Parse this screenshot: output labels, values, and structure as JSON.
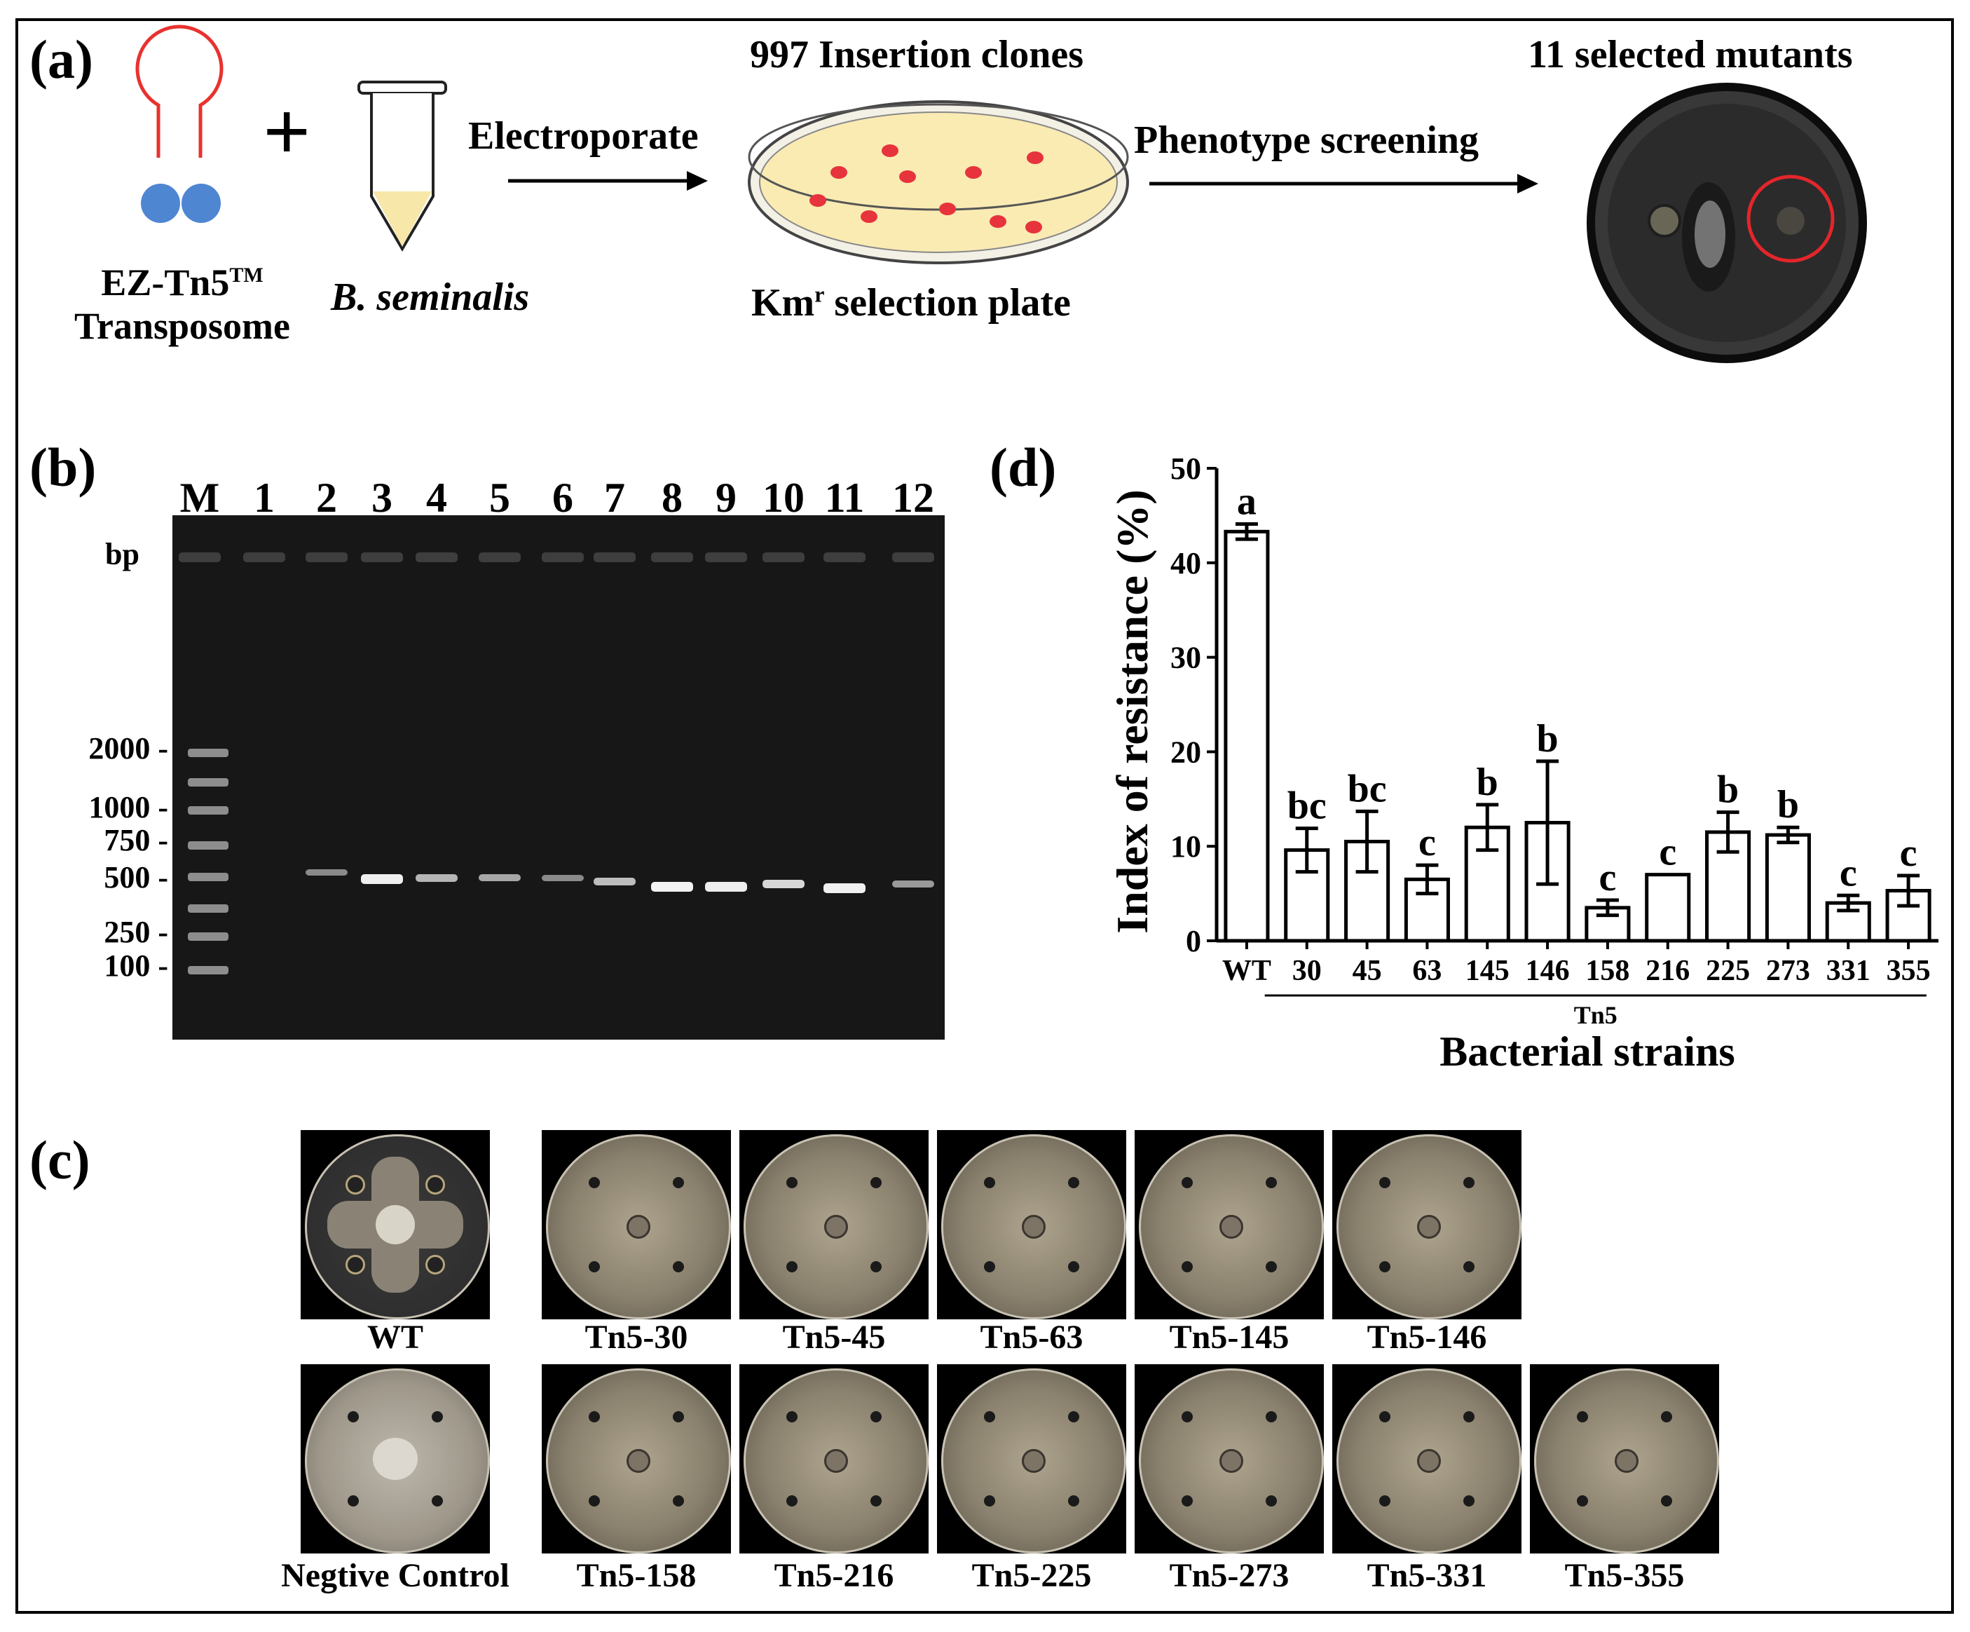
{
  "panel_a": {
    "label": "(a)",
    "transposome_label_line1": "EZ-Tn5",
    "transposome_tm": "TM",
    "transposome_label_line2": "Transposome",
    "plus": "+",
    "bacterium_label": "B. seminalis",
    "step1_label": "Electroporate",
    "plate_top_label": "997 Insertion clones",
    "plate_bottom_label_km": "Km",
    "plate_bottom_label_sup": "r",
    "plate_bottom_label_rest": " selection plate",
    "step2_label": "Phenotype screening",
    "result_label": "11 selected mutants"
  },
  "panel_b": {
    "label": "(b)",
    "lanes": [
      "M",
      "1",
      "2",
      "3",
      "4",
      "5",
      "6",
      "7",
      "8",
      "9",
      "10",
      "11",
      "12"
    ],
    "bp_label": "bp",
    "markers": [
      "2000",
      "1000",
      "750",
      "500",
      "250",
      "100"
    ]
  },
  "panel_c": {
    "label": "(c)",
    "row1": [
      "WT",
      "Tn5-30",
      "Tn5-45",
      "Tn5-63",
      "Tn5-145",
      "Tn5-146"
    ],
    "row2": [
      "Negtive Control",
      "Tn5-158",
      "Tn5-216",
      "Tn5-225",
      "Tn5-273",
      "Tn5-331",
      "Tn5-355"
    ]
  },
  "panel_d": {
    "label": "(d)",
    "group_label": "Tn5"
  },
  "chart_data": {
    "type": "bar",
    "categories": [
      "WT",
      "30",
      "45",
      "63",
      "145",
      "146",
      "158",
      "216",
      "225",
      "273",
      "331",
      "355"
    ],
    "values": [
      43.3,
      9.6,
      10.5,
      6.5,
      12.0,
      12.5,
      3.5,
      7.0,
      11.5,
      11.2,
      4.0,
      5.3
    ],
    "errors": [
      0.8,
      2.3,
      3.2,
      1.5,
      2.4,
      6.5,
      0.8,
      0,
      2.1,
      0.8,
      0.8,
      1.6
    ],
    "letters": [
      "a",
      "bc",
      "bc",
      "c",
      "b",
      "b",
      "c",
      "c",
      "b",
      "b",
      "c",
      "c"
    ],
    "xlabel": "Bacterial strains",
    "ylabel": "Index of resistance (%)",
    "ylim": [
      0,
      50
    ],
    "yticks": [
      0,
      10,
      20,
      30,
      40,
      50
    ],
    "grid": false
  }
}
